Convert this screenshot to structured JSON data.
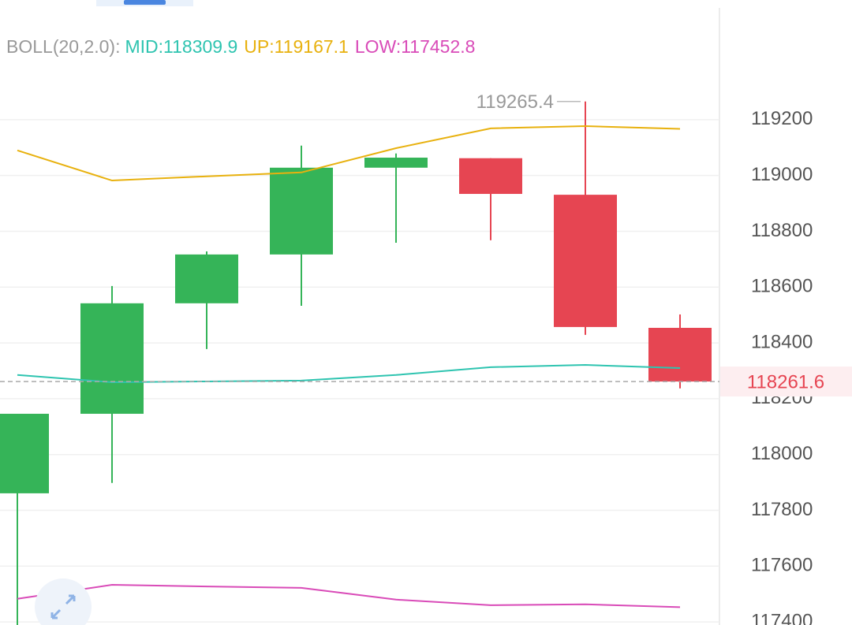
{
  "chart_data": {
    "type": "candlestick",
    "indicator_label": "BOLL(20,2.0):",
    "open": [
      117861,
      118146,
      118542,
      118717,
      119028,
      119062,
      118931,
      118454
    ],
    "high": [
      118146,
      118604,
      118728,
      119107,
      119079,
      119062,
      119265.4,
      118502
    ],
    "low": [
      117350,
      117898,
      118378,
      118533,
      118759,
      118768,
      118429,
      118237
    ],
    "close": [
      118146,
      118542,
      118717,
      119028,
      119064,
      118934,
      118457,
      118261.6
    ],
    "up_color": "#35b458",
    "down_color": "#e64552",
    "series": [
      {
        "name": "MID:",
        "color": "#2ec4b0",
        "values": [
          118285,
          118259,
          118262,
          118265,
          118285,
          118313,
          118321,
          118309.9
        ]
      },
      {
        "name": "UP:",
        "color": "#e8b10e",
        "values": [
          119090,
          118982,
          118997,
          119011,
          119098,
          119169,
          119177,
          119167.1
        ]
      },
      {
        "name": "LOW:",
        "color": "#d94bb8",
        "values": [
          117483,
          117533,
          117527,
          117522,
          117480,
          117460,
          117463,
          117452.8
        ]
      }
    ],
    "ylim": [
      117389,
      119629
    ],
    "yticks": [
      117400,
      117600,
      117800,
      118000,
      118200,
      118400,
      118600,
      118800,
      119000,
      119200
    ],
    "grid": true
  }
}
